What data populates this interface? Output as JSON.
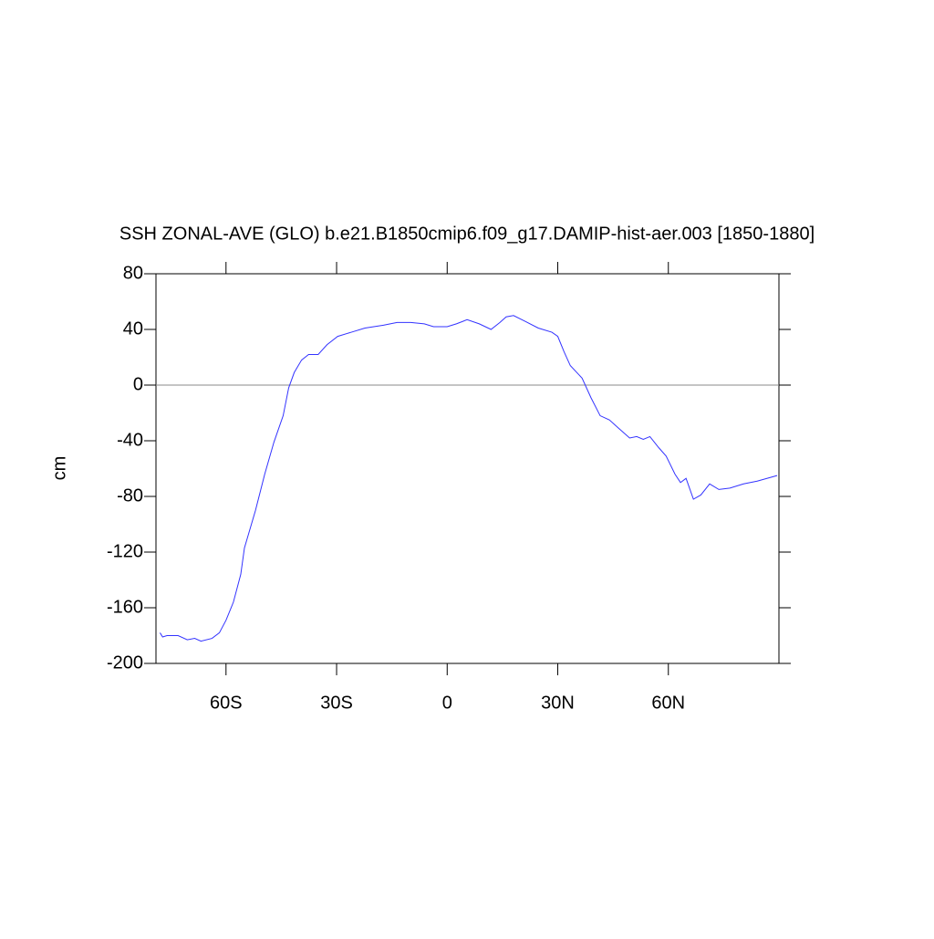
{
  "chart_data": {
    "type": "line",
    "title": "SSH ZONAL-AVE (GLO) b.e21.B1850cmip6.f09_g17.DAMIP-hist-aer.003 [1850-1880]",
    "y_label": "cm",
    "x": [
      -77.9,
      -77.2,
      -76,
      -73,
      -70.5,
      -68.5,
      -66.8,
      -63.8,
      -61.8,
      -60,
      -58,
      -56,
      -55,
      -52,
      -49.5,
      -47,
      -44.5,
      -43,
      -41.5,
      -39.5,
      -37.6,
      -35,
      -32.6,
      -29.7,
      -26,
      -22.3,
      -17.3,
      -13.6,
      -9.9,
      -6.2,
      -3.7,
      0,
      2.5,
      5.4,
      8.7,
      11.9,
      14.3,
      16,
      18,
      21,
      24.7,
      28.4,
      30,
      31.7,
      33.4,
      36.6,
      39,
      41.5,
      44,
      46.5,
      49.5,
      51.4,
      53.2,
      55,
      57.4,
      59.4,
      61.8,
      63.3,
      64.8,
      66.8,
      68.8,
      71.2,
      73.7,
      76.7,
      80.4,
      84.1,
      89.5
    ],
    "series": [
      {
        "name": "SSH",
        "color": "#3333ff",
        "values": [
          -178,
          -181,
          -180,
          -180,
          -183,
          -182,
          -184,
          -182,
          -178,
          -169,
          -156,
          -136,
          -117,
          -90,
          -64,
          -41,
          -22,
          -2,
          9,
          18,
          22,
          22,
          29,
          35,
          38,
          41,
          43,
          45,
          45,
          44,
          42,
          42,
          44,
          47,
          44,
          40,
          45,
          49,
          50,
          46,
          41,
          38,
          35,
          24,
          14,
          5,
          -9,
          -22,
          -25,
          -31,
          -38,
          -37,
          -39,
          -37,
          -45,
          -51,
          -64,
          -70,
          -67,
          -82,
          -79,
          -71,
          -75,
          -74,
          -71,
          -69,
          -65
        ]
      }
    ],
    "xlim": [
      -79,
      90
    ],
    "xticks": [
      {
        "value": -60,
        "label": "60S"
      },
      {
        "value": -30,
        "label": "30S"
      },
      0,
      {
        "value": 30,
        "label": "30N"
      },
      {
        "value": 60,
        "label": "60N"
      }
    ],
    "ylim": [
      -200,
      80
    ],
    "yticks": [
      80,
      40,
      0,
      -40,
      -80,
      -120,
      -160,
      -200
    ],
    "reference_line": 0
  }
}
